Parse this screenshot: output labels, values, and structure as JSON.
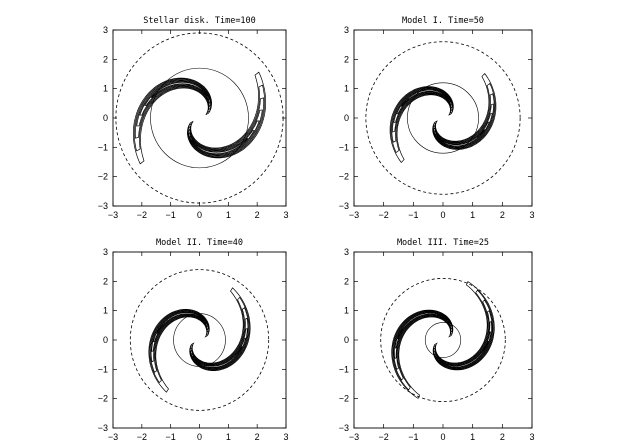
{
  "chart_data": [
    {
      "type": "contour",
      "title": "Stellar disk. Time=100",
      "xlim": [
        -3,
        3
      ],
      "ylim": [
        -3,
        3
      ],
      "xticks": [
        -3,
        -2,
        -1,
        0,
        1,
        2,
        3
      ],
      "yticks": [
        -3,
        -2,
        -1,
        0,
        1,
        2,
        3
      ],
      "arms": 2,
      "solid_circle_radius": 1.7,
      "dashed_circle_radius": 2.9,
      "spiral_outer_radius": 2.5,
      "spiral_winding_deg": 200,
      "arm_width": 0.95,
      "contour_levels": 7
    },
    {
      "type": "contour",
      "title": "Model I. Time=50",
      "xlim": [
        -3,
        3
      ],
      "ylim": [
        -3,
        3
      ],
      "xticks": [
        -3,
        -2,
        -1,
        0,
        1,
        2,
        3
      ],
      "yticks": [
        -3,
        -2,
        -1,
        0,
        1,
        2,
        3
      ],
      "arms": 2,
      "solid_circle_radius": 1.2,
      "dashed_circle_radius": 2.6,
      "spiral_outer_radius": 2.0,
      "spiral_winding_deg": 210,
      "arm_width": 0.8,
      "contour_levels": 7
    },
    {
      "type": "contour",
      "title": "Model II. Time=40",
      "xlim": [
        -3,
        3
      ],
      "ylim": [
        -3,
        3
      ],
      "xticks": [
        -3,
        -2,
        -1,
        0,
        1,
        2,
        3
      ],
      "yticks": [
        -3,
        -2,
        -1,
        0,
        1,
        2,
        3
      ],
      "arms": 2,
      "solid_circle_radius": 0.9,
      "dashed_circle_radius": 2.4,
      "spiral_outer_radius": 2.05,
      "spiral_winding_deg": 220,
      "arm_width": 0.75,
      "contour_levels": 7
    },
    {
      "type": "contour",
      "title": "Model III. Time=25",
      "xlim": [
        -3,
        3
      ],
      "ylim": [
        -3,
        3
      ],
      "xticks": [
        -3,
        -2,
        -1,
        0,
        1,
        2,
        3
      ],
      "yticks": [
        -3,
        -2,
        -1,
        0,
        1,
        2,
        3
      ],
      "arms": 2,
      "solid_circle_radius": 0.6,
      "dashed_circle_radius": 2.1,
      "spiral_outer_radius": 2.1,
      "spiral_winding_deg": 230,
      "arm_width": 0.7,
      "contour_levels": 7
    }
  ]
}
